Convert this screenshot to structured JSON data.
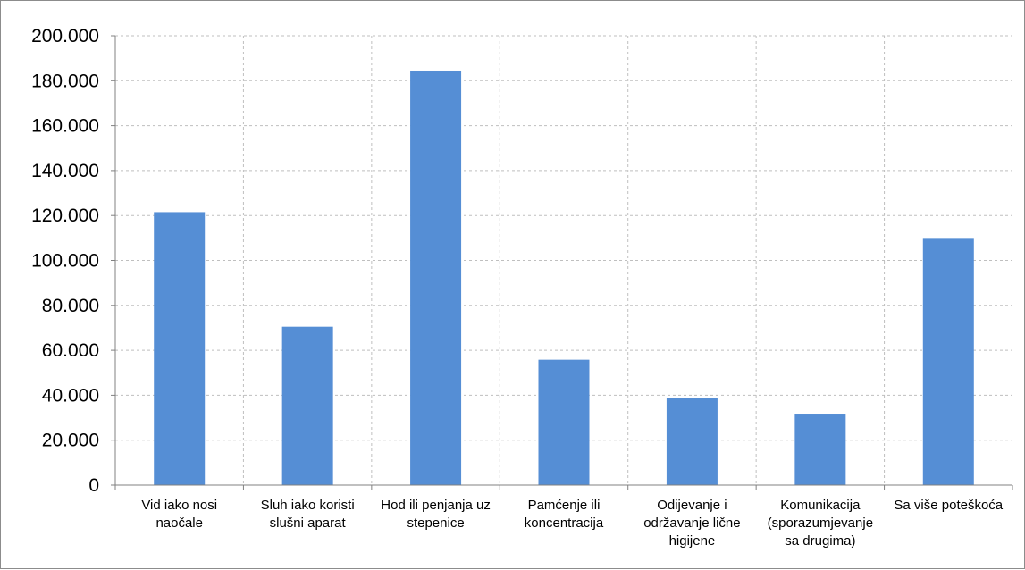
{
  "chart_data": {
    "type": "bar",
    "title": "",
    "xlabel": "",
    "ylabel": "",
    "ylim": [
      0,
      200000
    ],
    "ytick_step": 20000,
    "yticks": [
      "0",
      "20.000",
      "40.000",
      "60.000",
      "80.000",
      "100.000",
      "120.000",
      "140.000",
      "160.000",
      "180.000",
      "200.000"
    ],
    "grid": "horizontal-dashed",
    "legend": "none",
    "categories": [
      [
        "Vid iako nosi",
        "naočale"
      ],
      [
        "Sluh iako koristi",
        "slušni aparat"
      ],
      [
        "Hod ili penjanja uz",
        "stepenice"
      ],
      [
        "Pamćenje ili",
        "koncentracija"
      ],
      [
        "Odijevanje i",
        "održavanje lične",
        "higijene"
      ],
      [
        "Komunikacija",
        "(sporazumjevanje",
        "sa drugima)"
      ],
      [
        "Sa više poteškoća"
      ]
    ],
    "values": [
      121500,
      70500,
      184500,
      55800,
      38800,
      31800,
      110000
    ],
    "colors": {
      "bar": "#558ed5",
      "grid": "#bfbfbf",
      "axis": "#808080"
    }
  }
}
